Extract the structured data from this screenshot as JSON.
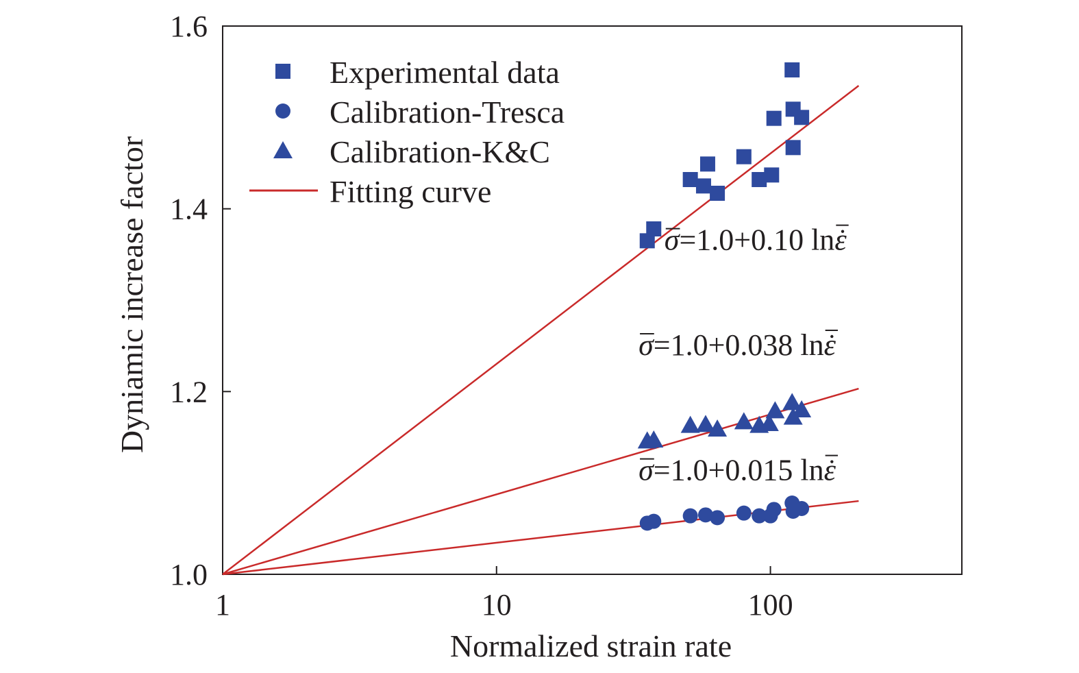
{
  "chart_data": {
    "type": "scatter",
    "xlabel": "Normalized strain rate",
    "ylabel": "Dyniamic increase factor",
    "x_scale": "log",
    "xlim": [
      1,
      500
    ],
    "ylim": [
      1.0,
      1.6
    ],
    "x_ticks": [
      1,
      10,
      100
    ],
    "x_tick_labels": [
      "1",
      "10",
      "100"
    ],
    "y_ticks": [
      1.0,
      1.2,
      1.4,
      1.6
    ],
    "y_tick_labels": [
      "1.0",
      "1.2",
      "1.4",
      "1.6"
    ],
    "grid": false,
    "legend_position": "top-left",
    "series": [
      {
        "name": "Experimental data",
        "marker": "square",
        "color": "#2e4a9e",
        "points": [
          [
            35.5,
            1.365
          ],
          [
            37.5,
            1.378
          ],
          [
            51,
            1.432
          ],
          [
            57,
            1.425
          ],
          [
            59,
            1.449
          ],
          [
            64,
            1.417
          ],
          [
            80,
            1.457
          ],
          [
            91,
            1.432
          ],
          [
            101,
            1.437
          ],
          [
            103,
            1.499
          ],
          [
            120,
            1.552
          ],
          [
            121,
            1.509
          ],
          [
            121,
            1.467
          ],
          [
            130,
            1.5
          ]
        ]
      },
      {
        "name": "Calibration-Tresca",
        "marker": "circle",
        "color": "#2e4a9e",
        "points": [
          [
            35.5,
            1.056
          ],
          [
            37.5,
            1.058
          ],
          [
            51,
            1.064
          ],
          [
            58,
            1.065
          ],
          [
            64,
            1.062
          ],
          [
            80,
            1.067
          ],
          [
            91,
            1.064
          ],
          [
            100,
            1.064
          ],
          [
            103,
            1.071
          ],
          [
            120,
            1.078
          ],
          [
            121,
            1.069
          ],
          [
            130,
            1.072
          ]
        ]
      },
      {
        "name": "Calibration-K&C",
        "marker": "triangle",
        "color": "#2e4a9e",
        "points": [
          [
            35.5,
            1.146
          ],
          [
            37.5,
            1.147
          ],
          [
            51,
            1.163
          ],
          [
            58,
            1.164
          ],
          [
            64,
            1.159
          ],
          [
            80,
            1.167
          ],
          [
            91,
            1.163
          ],
          [
            99,
            1.165
          ],
          [
            104,
            1.179
          ],
          [
            120,
            1.188
          ],
          [
            121,
            1.172
          ],
          [
            130,
            1.18
          ]
        ]
      }
    ],
    "fit_lines": [
      {
        "name": "Fitting curve",
        "color": "#c92a2a",
        "a": 1.0,
        "b": 0.1,
        "x_range": [
          1,
          210
        ]
      },
      {
        "a": 1.0,
        "b": 0.038,
        "x_range": [
          1,
          210
        ]
      },
      {
        "a": 1.0,
        "b": 0.015,
        "x_range": [
          1,
          210
        ]
      }
    ],
    "annotations": [
      {
        "sigma": "σ",
        "equation": "=1.0+0.10 ln",
        "epsilon": "ε",
        "at": [
          41,
          1.355
        ]
      },
      {
        "sigma": "σ",
        "equation": "=1.0+0.038 ln",
        "epsilon": "ε",
        "at": [
          33,
          1.24
        ]
      },
      {
        "sigma": "σ",
        "equation": "=1.0+0.015 ln",
        "epsilon": "ε",
        "at": [
          33,
          1.103
        ]
      }
    ]
  }
}
